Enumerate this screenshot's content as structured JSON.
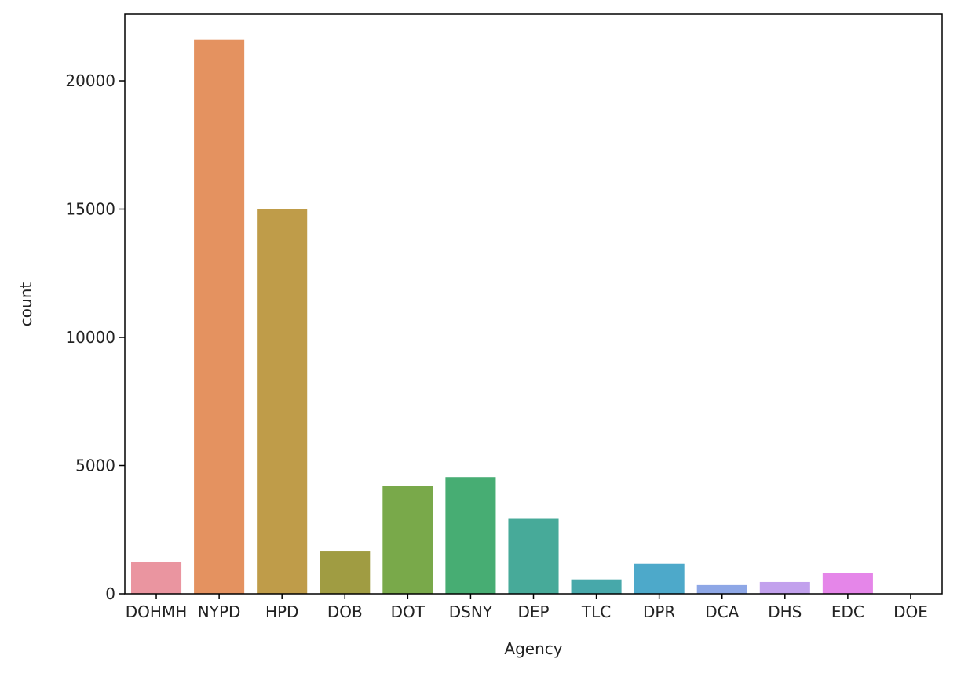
{
  "chart_data": {
    "type": "bar",
    "title": "",
    "xlabel": "Agency",
    "ylabel": "count",
    "ylim": [
      0,
      22600
    ],
    "yticks": [
      0,
      5000,
      10000,
      15000,
      20000
    ],
    "yticklabels": [
      "0",
      "5000",
      "10000",
      "15000",
      "20000"
    ],
    "grid": false,
    "legend": "none",
    "categories": [
      "DOHMH",
      "NYPD",
      "HPD",
      "DOB",
      "DOT",
      "DSNY",
      "DEP",
      "TLC",
      "DPR",
      "DCA",
      "DHS",
      "EDC",
      "DOE"
    ],
    "values": [
      1230,
      21600,
      15000,
      1650,
      4200,
      4550,
      2920,
      560,
      1170,
      340,
      460,
      800,
      10
    ],
    "colors": [
      "#ea95a0",
      "#e49260",
      "#bf9c49",
      "#a09c42",
      "#79a94a",
      "#47ad73",
      "#47aa99",
      "#47a8aa",
      "#4da9ca",
      "#8ea7e6",
      "#c2a1ed",
      "#e586e9",
      "#e788c4"
    ]
  }
}
